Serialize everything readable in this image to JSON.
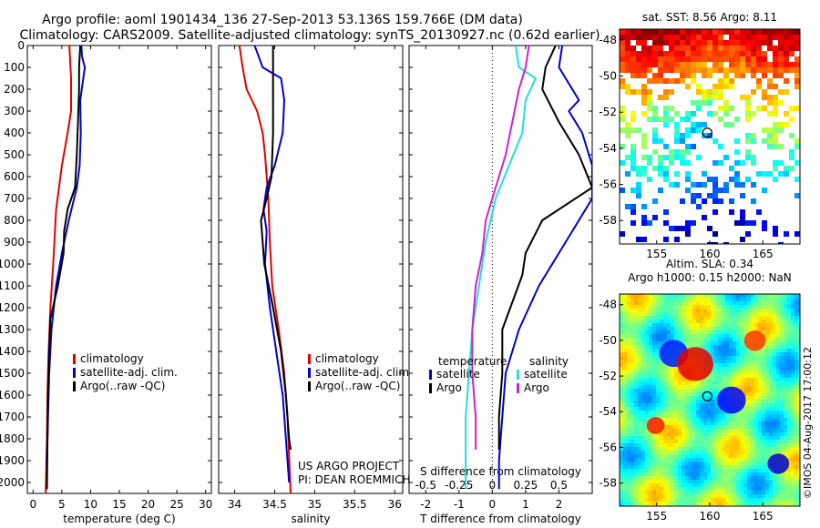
{
  "header": {
    "line1": "Argo profile: aoml 1901434_136 27-Sep-2013 53.136S 159.766E (DM data)",
    "line2": "Climatology: CARS2009. Satellite-adjusted climatology: synTS_20130927.nc (0.62d earlier)"
  },
  "credit": {
    "project": "US ARGO PROJECT",
    "pi": "PI: DEAN ROEMMICH",
    "stamp": "©IMOS 04-Aug-2017 17:00:12"
  },
  "colors": {
    "climatology": "#e00000",
    "satellite": "#0000cc",
    "argo": "#000000",
    "sat_salinity": "#22dddd",
    "argo_salinity": "#cc22cc"
  },
  "chart_data": [
    {
      "type": "line",
      "id": "temperature",
      "xlabel": "temperature (deg C)",
      "xlim": [
        -1,
        31
      ],
      "ylim": [
        2050,
        0
      ],
      "xticks": [
        0,
        5,
        10,
        15,
        20,
        25,
        30
      ],
      "yticks": [
        0,
        100,
        200,
        300,
        400,
        500,
        600,
        700,
        800,
        900,
        1000,
        1100,
        1200,
        1300,
        1400,
        1500,
        1600,
        1700,
        1800,
        1900,
        2000
      ],
      "legend": [
        "climatology",
        "satellite-adj. clim.",
        "Argo(..raw -QC)"
      ],
      "series": [
        {
          "name": "climatology",
          "color": "#e00000",
          "points": [
            [
              6.3,
              0
            ],
            [
              6.6,
              150
            ],
            [
              6.6,
              300
            ],
            [
              6.0,
              400
            ],
            [
              5.0,
              550
            ],
            [
              4.0,
              750
            ],
            [
              3.5,
              1000
            ],
            [
              3.0,
              1200
            ],
            [
              2.7,
              1400
            ],
            [
              2.5,
              1600
            ],
            [
              2.4,
              1800
            ],
            [
              2.2,
              2050
            ]
          ]
        },
        {
          "name": "satellite-adj. clim.",
          "color": "#0000cc",
          "points": [
            [
              8.4,
              0
            ],
            [
              8.5,
              50
            ],
            [
              9.0,
              100
            ],
            [
              8.2,
              250
            ],
            [
              8.3,
              400
            ],
            [
              8.1,
              550
            ],
            [
              7.6,
              650
            ],
            [
              6.2,
              800
            ],
            [
              5.0,
              950
            ],
            [
              4.0,
              1100
            ],
            [
              3.2,
              1300
            ],
            [
              2.8,
              1500
            ],
            [
              2.6,
              1700
            ],
            [
              2.4,
              1900
            ],
            [
              2.4,
              2030
            ]
          ]
        },
        {
          "name": "Argo(..raw -QC)",
          "color": "#000000",
          "points": [
            [
              8.2,
              0
            ],
            [
              8.0,
              100
            ],
            [
              8.0,
              200
            ],
            [
              7.8,
              350
            ],
            [
              7.6,
              500
            ],
            [
              7.3,
              650
            ],
            [
              6.0,
              750
            ],
            [
              5.4,
              850
            ],
            [
              5.3,
              950
            ],
            [
              4.3,
              1100
            ],
            [
              3.0,
              1250
            ],
            [
              2.8,
              1400
            ],
            [
              2.6,
              1600
            ],
            [
              2.5,
              1800
            ],
            [
              2.4,
              2030
            ]
          ]
        }
      ]
    },
    {
      "type": "line",
      "id": "salinity",
      "xlabel": "salinity",
      "xlim": [
        33.8,
        36.1
      ],
      "ylim": [
        2050,
        0
      ],
      "xticks": [
        34,
        34.5,
        35,
        35.5,
        36
      ],
      "legend": [
        "climatology",
        "satellite-adj. clim.",
        "Argo(..raw -QC)"
      ],
      "series": [
        {
          "name": "climatology",
          "color": "#e00000",
          "points": [
            [
              34.06,
              0
            ],
            [
              34.1,
              100
            ],
            [
              34.15,
              200
            ],
            [
              34.28,
              300
            ],
            [
              34.35,
              400
            ],
            [
              34.38,
              500
            ],
            [
              34.4,
              600
            ],
            [
              34.42,
              700
            ],
            [
              34.44,
              900
            ],
            [
              34.47,
              1100
            ],
            [
              34.55,
              1300
            ],
            [
              34.62,
              1500
            ],
            [
              34.66,
              1700
            ],
            [
              34.7,
              2050
            ]
          ]
        },
        {
          "name": "satellite-adj. clim.",
          "color": "#0000cc",
          "points": [
            [
              34.25,
              0
            ],
            [
              34.35,
              100
            ],
            [
              34.58,
              150
            ],
            [
              34.62,
              250
            ],
            [
              34.6,
              400
            ],
            [
              34.5,
              550
            ],
            [
              34.4,
              650
            ],
            [
              34.36,
              750
            ],
            [
              34.4,
              850
            ],
            [
              34.38,
              1000
            ],
            [
              34.44,
              1200
            ],
            [
              34.52,
              1400
            ],
            [
              34.6,
              1600
            ],
            [
              34.64,
              1800
            ],
            [
              34.68,
              2000
            ]
          ]
        },
        {
          "name": "Argo(..raw -QC)",
          "color": "#000000",
          "points": [
            [
              34.48,
              0
            ],
            [
              34.48,
              150
            ],
            [
              34.48,
              400
            ],
            [
              34.46,
              600
            ],
            [
              34.4,
              700
            ],
            [
              34.33,
              800
            ],
            [
              34.35,
              900
            ],
            [
              34.37,
              1000
            ],
            [
              34.48,
              1200
            ],
            [
              34.58,
              1400
            ],
            [
              34.64,
              1600
            ],
            [
              34.68,
              1800
            ],
            [
              34.7,
              1850
            ]
          ]
        }
      ]
    },
    {
      "type": "line",
      "id": "difference",
      "xlabel": "T difference from climatology",
      "xlabel2": "S difference from climatology",
      "xlim": [
        -2.5,
        3.0
      ],
      "ylim": [
        2050,
        0
      ],
      "xticks": [
        -2,
        -1,
        0,
        1,
        2
      ],
      "xticks2": [
        -0.5,
        -0.25,
        0,
        0.25,
        0.5
      ],
      "legend_titles": [
        "temperature",
        "salinity"
      ],
      "legend": [
        "satellite",
        "Argo",
        "satellite",
        "Argo"
      ],
      "series": [
        {
          "name": "temperature satellite",
          "color": "#0000cc",
          "points": [
            [
              2.1,
              0
            ],
            [
              2.0,
              100
            ],
            [
              2.6,
              250
            ],
            [
              2.3,
              300
            ],
            [
              2.7,
              400
            ],
            [
              3.0,
              550
            ],
            [
              3.0,
              700
            ],
            [
              2.2,
              900
            ],
            [
              1.4,
              1100
            ],
            [
              0.8,
              1300
            ],
            [
              0.4,
              1500
            ],
            [
              0.3,
              1700
            ],
            [
              0.2,
              1900
            ],
            [
              0.2,
              2030
            ]
          ]
        },
        {
          "name": "temperature Argo",
          "color": "#000000",
          "points": [
            [
              1.9,
              0
            ],
            [
              1.6,
              100
            ],
            [
              1.5,
              200
            ],
            [
              2.0,
              350
            ],
            [
              2.6,
              500
            ],
            [
              3.0,
              650
            ],
            [
              1.5,
              800
            ],
            [
              1.0,
              950
            ],
            [
              0.9,
              1050
            ],
            [
              0.3,
              1300
            ],
            [
              0.3,
              1500
            ],
            [
              0.2,
              1700
            ],
            [
              0.2,
              1850
            ]
          ]
        },
        {
          "name": "salinity satellite",
          "color": "#22dddd",
          "points": [
            [
              0.7,
              0
            ],
            [
              0.8,
              100
            ],
            [
              1.3,
              150
            ],
            [
              1.0,
              250
            ],
            [
              0.9,
              400
            ],
            [
              0.5,
              550
            ],
            [
              0.1,
              700
            ],
            [
              -0.2,
              900
            ],
            [
              -0.4,
              1100
            ],
            [
              -0.6,
              1300
            ],
            [
              -0.7,
              1500
            ],
            [
              -0.8,
              1700
            ],
            [
              -0.8,
              1900
            ],
            [
              -0.8,
              2030
            ]
          ]
        },
        {
          "name": "salinity Argo",
          "color": "#cc22cc",
          "points": [
            [
              1.1,
              0
            ],
            [
              1.0,
              100
            ],
            [
              0.8,
              200
            ],
            [
              0.6,
              350
            ],
            [
              0.4,
              500
            ],
            [
              0.1,
              650
            ],
            [
              -0.2,
              800
            ],
            [
              -0.3,
              950
            ],
            [
              -0.5,
              1100
            ],
            [
              -0.6,
              1300
            ],
            [
              -0.6,
              1500
            ],
            [
              -0.5,
              1700
            ],
            [
              -0.5,
              1850
            ]
          ]
        }
      ]
    },
    {
      "type": "heatmap",
      "id": "sst_map",
      "title": "sat. SST: 8.56 Argo: 8.11",
      "xlim": [
        151.5,
        168.5
      ],
      "ylim": [
        -59.3,
        -47.4
      ],
      "xticks": [
        155,
        160,
        165
      ],
      "yticks": [
        -48,
        -50,
        -52,
        -54,
        -56,
        -58
      ],
      "marker": [
        159.766,
        -53.136
      ]
    },
    {
      "type": "heatmap",
      "id": "sla_map",
      "title": "Altim. SLA: 0.34",
      "subtitle": "Argo h1000: 0.15 h2000: NaN",
      "xlim": [
        151.5,
        168.5
      ],
      "ylim": [
        -59.3,
        -47.4
      ],
      "xticks": [
        155,
        160,
        165
      ],
      "yticks": [
        -48,
        -50,
        -52,
        -54,
        -56,
        -58
      ],
      "marker": [
        159.766,
        -53.136
      ]
    }
  ]
}
